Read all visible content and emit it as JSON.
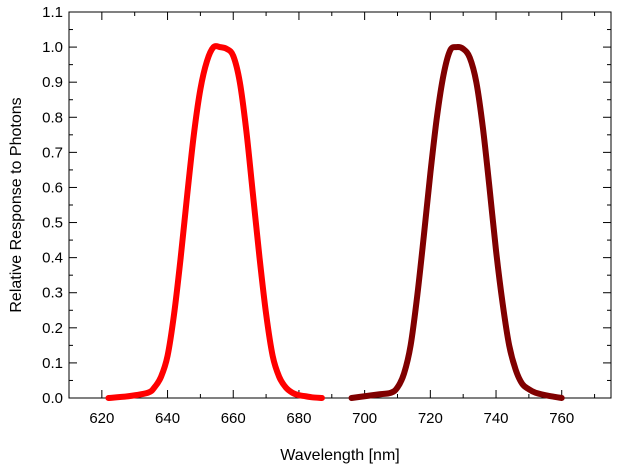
{
  "chart_data": {
    "type": "line",
    "title": "",
    "xlabel": "Wavelength [nm]",
    "ylabel": "Relative Response to Photons",
    "xlim": [
      610,
      775
    ],
    "ylim": [
      0,
      1.1
    ],
    "x_ticks": [
      "620",
      "640",
      "660",
      "680",
      "700",
      "720",
      "740",
      "760"
    ],
    "y_ticks": [
      "0.0",
      "0.1",
      "0.2",
      "0.3",
      "0.4",
      "0.5",
      "0.6",
      "0.7",
      "0.8",
      "0.9",
      "1.0",
      "1.1"
    ],
    "x_tick_values": [
      620,
      640,
      660,
      680,
      700,
      720,
      740,
      760
    ],
    "y_tick_values": [
      0,
      0.1,
      0.2,
      0.3,
      0.4,
      0.5,
      0.6,
      0.7,
      0.8,
      0.9,
      1.0,
      1.1
    ],
    "grid": false,
    "series": [
      {
        "color": "#ff0000",
        "x": [
          622,
          628,
          634,
          636,
          638,
          640,
          642,
          644,
          646,
          648,
          650,
          652,
          654,
          656,
          658,
          660,
          662,
          664,
          666,
          668,
          670,
          672,
          674,
          676,
          678,
          680,
          682,
          684,
          687
        ],
        "y": [
          0.0,
          0.005,
          0.015,
          0.03,
          0.06,
          0.12,
          0.24,
          0.4,
          0.58,
          0.75,
          0.88,
          0.96,
          1.0,
          1.0,
          0.995,
          0.975,
          0.9,
          0.76,
          0.58,
          0.4,
          0.24,
          0.12,
          0.06,
          0.03,
          0.015,
          0.008,
          0.005,
          0.002,
          0.0
        ]
      },
      {
        "color": "#800000",
        "x": [
          696,
          700,
          704,
          708,
          710,
          712,
          714,
          716,
          718,
          720,
          722,
          724,
          726,
          728,
          730,
          732,
          734,
          736,
          738,
          740,
          742,
          744,
          746,
          748,
          750,
          752,
          755,
          758,
          760
        ],
        "y": [
          0.0,
          0.005,
          0.01,
          0.015,
          0.03,
          0.07,
          0.15,
          0.29,
          0.46,
          0.64,
          0.8,
          0.92,
          0.99,
          1.0,
          0.995,
          0.97,
          0.9,
          0.77,
          0.6,
          0.42,
          0.27,
          0.15,
          0.08,
          0.04,
          0.025,
          0.015,
          0.008,
          0.003,
          0.0
        ]
      }
    ]
  }
}
